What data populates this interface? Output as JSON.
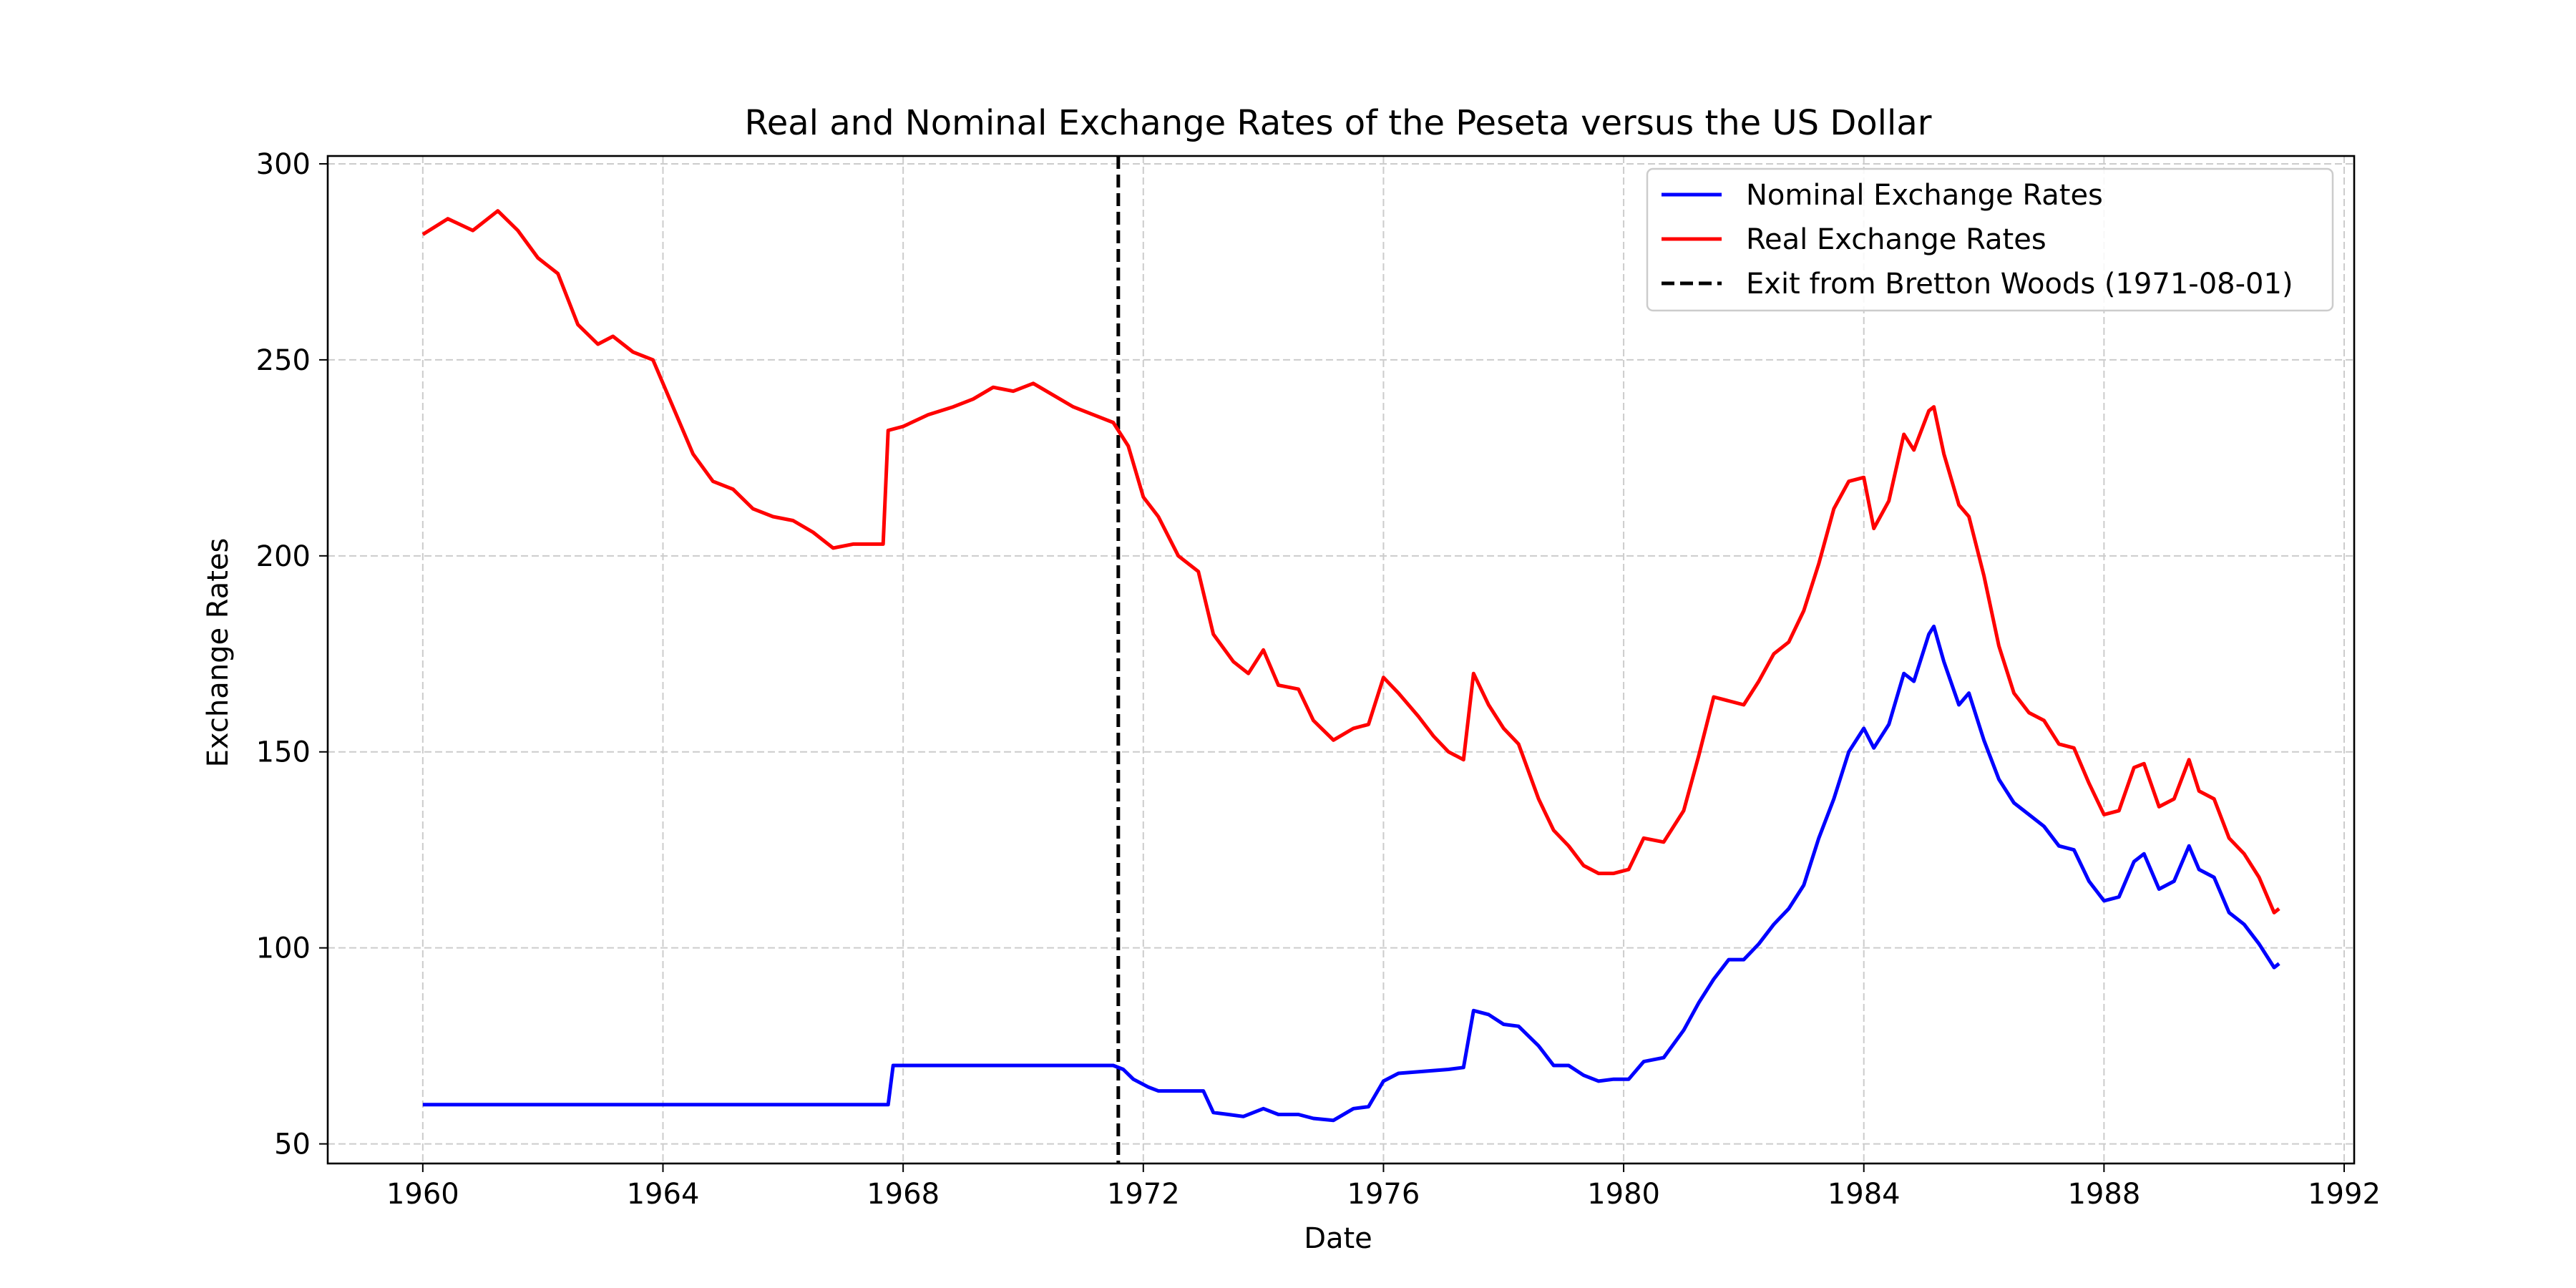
{
  "chart_data": {
    "type": "line",
    "title": "Real and Nominal Exchange Rates of the Peseta versus the US Dollar",
    "xlabel": "Date",
    "ylabel": "Exchange Rates",
    "xlim": [
      "1958-06-01",
      "1992-03-01"
    ],
    "ylim": [
      45,
      302
    ],
    "x_ticks": [
      "1960",
      "1964",
      "1968",
      "1972",
      "1976",
      "1980",
      "1984",
      "1988",
      "1992"
    ],
    "y_ticks": [
      50,
      100,
      150,
      200,
      250,
      300
    ],
    "grid": true,
    "legend_position": "top-right",
    "series": [
      {
        "name": "Nominal Exchange Rates",
        "color": "#0000ff",
        "points": [
          [
            "1960-01-01",
            60
          ],
          [
            "1967-10-01",
            60
          ],
          [
            "1967-11-01",
            70
          ],
          [
            "1971-07-01",
            70
          ],
          [
            "1971-09-01",
            69
          ],
          [
            "1971-11-01",
            66.5
          ],
          [
            "1972-02-01",
            64.5
          ],
          [
            "1972-04-01",
            63.5
          ],
          [
            "1973-01-01",
            63.5
          ],
          [
            "1973-03-01",
            58
          ],
          [
            "1973-06-01",
            57.5
          ],
          [
            "1973-09-01",
            57
          ],
          [
            "1974-01-01",
            59
          ],
          [
            "1974-04-01",
            57.5
          ],
          [
            "1974-08-01",
            57.5
          ],
          [
            "1974-11-01",
            56.5
          ],
          [
            "1975-03-01",
            56
          ],
          [
            "1975-07-01",
            59
          ],
          [
            "1975-10-01",
            59.5
          ],
          [
            "1976-01-01",
            66
          ],
          [
            "1976-04-01",
            68
          ],
          [
            "1976-09-01",
            68.5
          ],
          [
            "1977-02-01",
            69
          ],
          [
            "1977-05-01",
            69.5
          ],
          [
            "1977-07-01",
            84
          ],
          [
            "1977-10-01",
            83
          ],
          [
            "1978-01-01",
            80.5
          ],
          [
            "1978-04-01",
            80
          ],
          [
            "1978-08-01",
            75
          ],
          [
            "1978-11-01",
            70
          ],
          [
            "1979-02-01",
            70
          ],
          [
            "1979-05-01",
            67.5
          ],
          [
            "1979-08-01",
            66
          ],
          [
            "1979-11-01",
            66.5
          ],
          [
            "1980-02-01",
            66.5
          ],
          [
            "1980-05-01",
            71
          ],
          [
            "1980-09-01",
            72
          ],
          [
            "1981-01-01",
            79
          ],
          [
            "1981-04-01",
            86
          ],
          [
            "1981-07-01",
            92
          ],
          [
            "1981-10-01",
            97
          ],
          [
            "1982-01-01",
            97
          ],
          [
            "1982-04-01",
            101
          ],
          [
            "1982-07-01",
            106
          ],
          [
            "1982-10-01",
            110
          ],
          [
            "1983-01-01",
            116
          ],
          [
            "1983-04-01",
            128
          ],
          [
            "1983-07-01",
            138
          ],
          [
            "1983-10-01",
            150
          ],
          [
            "1984-01-01",
            156
          ],
          [
            "1984-03-01",
            151
          ],
          [
            "1984-06-01",
            157
          ],
          [
            "1984-09-01",
            170
          ],
          [
            "1984-11-01",
            168
          ],
          [
            "1985-02-01",
            180
          ],
          [
            "1985-03-01",
            182
          ],
          [
            "1985-05-01",
            173
          ],
          [
            "1985-08-01",
            162
          ],
          [
            "1985-10-01",
            165
          ],
          [
            "1986-01-01",
            153
          ],
          [
            "1986-04-01",
            143
          ],
          [
            "1986-07-01",
            137
          ],
          [
            "1986-10-01",
            134
          ],
          [
            "1987-01-01",
            131
          ],
          [
            "1987-04-01",
            126
          ],
          [
            "1987-07-01",
            125
          ],
          [
            "1987-10-01",
            117
          ],
          [
            "1988-01-01",
            112
          ],
          [
            "1988-04-01",
            113
          ],
          [
            "1988-07-01",
            122
          ],
          [
            "1988-09-01",
            124
          ],
          [
            "1988-12-01",
            115
          ],
          [
            "1989-03-01",
            117
          ],
          [
            "1989-06-01",
            126
          ],
          [
            "1989-08-01",
            120
          ],
          [
            "1989-11-01",
            118
          ],
          [
            "1990-02-01",
            109
          ],
          [
            "1990-05-01",
            106
          ],
          [
            "1990-08-01",
            101
          ],
          [
            "1990-11-01",
            95
          ],
          [
            "1990-12-01",
            96
          ]
        ]
      },
      {
        "name": "Real Exchange Rates",
        "color": "#ff0000",
        "points": [
          [
            "1960-01-01",
            282
          ],
          [
            "1960-06-01",
            286
          ],
          [
            "1960-11-01",
            283
          ],
          [
            "1961-04-01",
            288
          ],
          [
            "1961-08-01",
            283
          ],
          [
            "1961-12-01",
            276
          ],
          [
            "1962-04-01",
            272
          ],
          [
            "1962-08-01",
            259
          ],
          [
            "1962-12-01",
            254
          ],
          [
            "1963-03-01",
            256
          ],
          [
            "1963-07-01",
            252
          ],
          [
            "1963-11-01",
            250
          ],
          [
            "1964-03-01",
            238
          ],
          [
            "1964-07-01",
            226
          ],
          [
            "1964-11-01",
            219
          ],
          [
            "1965-03-01",
            217
          ],
          [
            "1965-07-01",
            212
          ],
          [
            "1965-11-01",
            210
          ],
          [
            "1966-03-01",
            209
          ],
          [
            "1966-07-01",
            206
          ],
          [
            "1966-11-01",
            202
          ],
          [
            "1967-03-01",
            203
          ],
          [
            "1967-09-01",
            203
          ],
          [
            "1967-10-01",
            232
          ],
          [
            "1968-01-01",
            233
          ],
          [
            "1968-06-01",
            236
          ],
          [
            "1968-11-01",
            238
          ],
          [
            "1969-03-01",
            240
          ],
          [
            "1969-07-01",
            243
          ],
          [
            "1969-11-01",
            242
          ],
          [
            "1970-03-01",
            244
          ],
          [
            "1970-07-01",
            241
          ],
          [
            "1970-11-01",
            238
          ],
          [
            "1971-03-01",
            236
          ],
          [
            "1971-07-01",
            234
          ],
          [
            "1971-10-01",
            228
          ],
          [
            "1972-01-01",
            215
          ],
          [
            "1972-04-01",
            210
          ],
          [
            "1972-08-01",
            200
          ],
          [
            "1972-12-01",
            196
          ],
          [
            "1973-03-01",
            180
          ],
          [
            "1973-07-01",
            173
          ],
          [
            "1973-10-01",
            170
          ],
          [
            "1974-01-01",
            176
          ],
          [
            "1974-04-01",
            167
          ],
          [
            "1974-08-01",
            166
          ],
          [
            "1974-11-01",
            158
          ],
          [
            "1975-03-01",
            153
          ],
          [
            "1975-07-01",
            156
          ],
          [
            "1975-10-01",
            157
          ],
          [
            "1976-01-01",
            169
          ],
          [
            "1976-04-01",
            165
          ],
          [
            "1976-08-01",
            159
          ],
          [
            "1976-11-01",
            154
          ],
          [
            "1977-02-01",
            150
          ],
          [
            "1977-05-01",
            148
          ],
          [
            "1977-07-01",
            170
          ],
          [
            "1977-10-01",
            162
          ],
          [
            "1978-01-01",
            156
          ],
          [
            "1978-04-01",
            152
          ],
          [
            "1978-08-01",
            138
          ],
          [
            "1978-11-01",
            130
          ],
          [
            "1979-02-01",
            126
          ],
          [
            "1979-05-01",
            121
          ],
          [
            "1979-08-01",
            119
          ],
          [
            "1979-11-01",
            119
          ],
          [
            "1980-02-01",
            120
          ],
          [
            "1980-05-01",
            128
          ],
          [
            "1980-09-01",
            127
          ],
          [
            "1981-01-01",
            135
          ],
          [
            "1981-04-01",
            149
          ],
          [
            "1981-07-01",
            164
          ],
          [
            "1981-10-01",
            163
          ],
          [
            "1982-01-01",
            162
          ],
          [
            "1982-04-01",
            168
          ],
          [
            "1982-07-01",
            175
          ],
          [
            "1982-10-01",
            178
          ],
          [
            "1983-01-01",
            186
          ],
          [
            "1983-04-01",
            198
          ],
          [
            "1983-07-01",
            212
          ],
          [
            "1983-10-01",
            219
          ],
          [
            "1984-01-01",
            220
          ],
          [
            "1984-03-01",
            207
          ],
          [
            "1984-06-01",
            214
          ],
          [
            "1984-09-01",
            231
          ],
          [
            "1984-11-01",
            227
          ],
          [
            "1985-02-01",
            237
          ],
          [
            "1985-03-01",
            238
          ],
          [
            "1985-05-01",
            226
          ],
          [
            "1985-08-01",
            213
          ],
          [
            "1985-10-01",
            210
          ],
          [
            "1986-01-01",
            195
          ],
          [
            "1986-04-01",
            177
          ],
          [
            "1986-07-01",
            165
          ],
          [
            "1986-10-01",
            160
          ],
          [
            "1987-01-01",
            158
          ],
          [
            "1987-04-01",
            152
          ],
          [
            "1987-07-01",
            151
          ],
          [
            "1987-10-01",
            142
          ],
          [
            "1988-01-01",
            134
          ],
          [
            "1988-04-01",
            135
          ],
          [
            "1988-07-01",
            146
          ],
          [
            "1988-09-01",
            147
          ],
          [
            "1988-12-01",
            136
          ],
          [
            "1989-03-01",
            138
          ],
          [
            "1989-06-01",
            148
          ],
          [
            "1989-08-01",
            140
          ],
          [
            "1989-11-01",
            138
          ],
          [
            "1990-02-01",
            128
          ],
          [
            "1990-05-01",
            124
          ],
          [
            "1990-08-01",
            118
          ],
          [
            "1990-11-01",
            109
          ],
          [
            "1990-12-01",
            110
          ]
        ]
      }
    ],
    "vertical_line": {
      "label": "Exit from Bretton Woods (1971-08-01)",
      "date": "1971-08-01",
      "color": "#000000",
      "style": "dashed"
    }
  }
}
